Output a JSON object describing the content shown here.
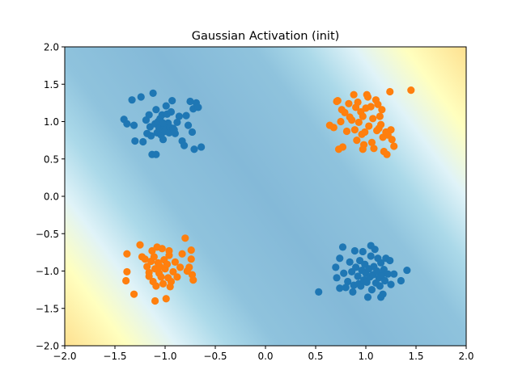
{
  "chart_data": {
    "type": "scatter",
    "title": "Gaussian Activation (init)",
    "xlabel": "",
    "ylabel": "",
    "xlim": [
      -2.0,
      2.0
    ],
    "ylim": [
      -2.0,
      2.0
    ],
    "xticks": [
      "−2.0",
      "−1.5",
      "−1.0",
      "−0.5",
      "0.0",
      "0.5",
      "1.0",
      "1.5",
      "2.0"
    ],
    "yticks": [
      "−2.0",
      "−1.5",
      "−1.0",
      "−0.5",
      "0.0",
      "0.5",
      "1.0",
      "1.5",
      "2.0"
    ],
    "xtick_values": [
      -2.0,
      -1.5,
      -1.0,
      -0.5,
      0.0,
      0.5,
      1.0,
      1.5,
      2.0
    ],
    "ytick_values": [
      -2.0,
      -1.5,
      -1.0,
      -0.5,
      0.0,
      0.5,
      1.0,
      1.5,
      2.0
    ],
    "grid": false,
    "background": {
      "type": "filled-contour",
      "colormap": "RdYlBu",
      "description": "diagonal bands: blue along the line y = -x, fading to white then yellow toward the top-right and bottom-left corners"
    },
    "series": [
      {
        "color": "#1f77b4",
        "points": [
          [
            -1.41,
            1.03
          ],
          [
            -1.38,
            0.97
          ],
          [
            -1.33,
            1.29
          ],
          [
            -1.31,
            0.95
          ],
          [
            -1.3,
            0.74
          ],
          [
            -1.24,
            1.33
          ],
          [
            -1.22,
            0.73
          ],
          [
            -1.19,
            1.02
          ],
          [
            -1.16,
            1.09
          ],
          [
            -1.15,
            0.93
          ],
          [
            -1.14,
            0.81
          ],
          [
            -1.13,
            0.56
          ],
          [
            -1.12,
            1.38
          ],
          [
            -1.1,
            0.97
          ],
          [
            -1.09,
            1.16
          ],
          [
            -1.08,
            0.85
          ],
          [
            -1.07,
            1.0
          ],
          [
            -1.06,
            0.91
          ],
          [
            -1.05,
            1.04
          ],
          [
            -1.04,
            0.82
          ],
          [
            -1.03,
            1.09
          ],
          [
            -1.02,
            0.76
          ],
          [
            -1.01,
            0.93
          ],
          [
            -1.0,
            0.87
          ],
          [
            -0.99,
            1.21
          ],
          [
            -0.98,
            1.1
          ],
          [
            -0.97,
            0.98
          ],
          [
            -0.96,
            0.85
          ],
          [
            -0.95,
            0.92
          ],
          [
            -0.94,
            1.13
          ],
          [
            -0.93,
            1.28
          ],
          [
            -0.92,
            0.91
          ],
          [
            -0.91,
            0.89
          ],
          [
            -0.9,
            0.84
          ],
          [
            -0.88,
            0.99
          ],
          [
            -0.86,
            1.07
          ],
          [
            -0.83,
            0.74
          ],
          [
            -0.81,
            0.68
          ],
          [
            -0.79,
            1.08
          ],
          [
            -0.77,
            0.95
          ],
          [
            -0.75,
            1.27
          ],
          [
            -0.73,
            0.86
          ],
          [
            -0.72,
            1.17
          ],
          [
            -0.71,
            0.63
          ],
          [
            -0.69,
            1.25
          ],
          [
            -0.67,
            1.19
          ],
          [
            -0.64,
            0.66
          ],
          [
            -1.09,
            0.56
          ],
          [
            -1.18,
            0.84
          ],
          [
            -1.02,
            0.98
          ],
          [
            0.53,
            -1.28
          ],
          [
            0.7,
            -0.95
          ],
          [
            0.71,
            -1.09
          ],
          [
            0.74,
            -0.83
          ],
          [
            0.74,
            -1.23
          ],
          [
            0.77,
            -0.68
          ],
          [
            0.78,
            -1.03
          ],
          [
            0.8,
            -1.22
          ],
          [
            0.82,
            -1.14
          ],
          [
            0.84,
            -0.88
          ],
          [
            0.86,
            -1.01
          ],
          [
            0.87,
            -1.28
          ],
          [
            0.88,
            -1.19
          ],
          [
            0.89,
            -0.73
          ],
          [
            0.9,
            -0.95
          ],
          [
            0.92,
            -1.07
          ],
          [
            0.93,
            -1.17
          ],
          [
            0.94,
            -0.86
          ],
          [
            0.95,
            -1.2
          ],
          [
            0.96,
            -0.99
          ],
          [
            0.97,
            -0.74
          ],
          [
            0.98,
            -1.12
          ],
          [
            0.99,
            -0.91
          ],
          [
            1.0,
            -1.03
          ],
          [
            1.01,
            -1.15
          ],
          [
            1.02,
            -1.35
          ],
          [
            1.03,
            -0.97
          ],
          [
            1.04,
            -1.08
          ],
          [
            1.05,
            -0.8
          ],
          [
            1.05,
            -0.66
          ],
          [
            1.06,
            -1.25
          ],
          [
            1.07,
            -1.05
          ],
          [
            1.08,
            -0.94
          ],
          [
            1.09,
            -0.71
          ],
          [
            1.1,
            -1.16
          ],
          [
            1.11,
            -1.0
          ],
          [
            1.12,
            -0.83
          ],
          [
            1.13,
            -1.09
          ],
          [
            1.14,
            -1.2
          ],
          [
            1.15,
            -0.89
          ],
          [
            1.16,
            -1.05
          ],
          [
            1.17,
            -1.31
          ],
          [
            1.18,
            -0.98
          ],
          [
            1.19,
            -1.13
          ],
          [
            1.2,
            -0.83
          ],
          [
            1.22,
            -1.04
          ],
          [
            1.24,
            -0.86
          ],
          [
            1.25,
            -1.18
          ],
          [
            1.28,
            -1.04
          ],
          [
            1.35,
            -1.13
          ],
          [
            1.41,
            -0.99
          ],
          [
            1.15,
            -1.35
          ]
        ]
      },
      {
        "color": "#ff7f0e",
        "points": [
          [
            0.64,
            0.95
          ],
          [
            0.68,
            0.92
          ],
          [
            0.71,
            1.27
          ],
          [
            0.72,
            1.28
          ],
          [
            0.73,
            0.63
          ],
          [
            0.75,
            1.0
          ],
          [
            0.76,
            1.16
          ],
          [
            0.77,
            0.66
          ],
          [
            0.79,
            1.12
          ],
          [
            0.81,
            0.87
          ],
          [
            0.83,
            1.24
          ],
          [
            0.84,
            1.06
          ],
          [
            0.86,
            1.02
          ],
          [
            0.88,
            1.36
          ],
          [
            0.89,
            0.89
          ],
          [
            0.9,
            1.19
          ],
          [
            0.91,
            0.75
          ],
          [
            0.92,
            1.26
          ],
          [
            0.93,
            0.99
          ],
          [
            0.95,
            1.13
          ],
          [
            0.96,
            0.83
          ],
          [
            0.97,
            1.07
          ],
          [
            0.98,
            0.69
          ],
          [
            0.99,
            0.86
          ],
          [
            1.0,
            1.18
          ],
          [
            1.01,
            1.36
          ],
          [
            1.02,
            1.33
          ],
          [
            1.03,
            0.94
          ],
          [
            1.05,
            1.2
          ],
          [
            1.06,
            0.72
          ],
          [
            1.07,
            1.04
          ],
          [
            1.08,
            0.64
          ],
          [
            1.1,
            1.29
          ],
          [
            1.11,
            0.88
          ],
          [
            1.12,
            1.23
          ],
          [
            1.13,
            0.91
          ],
          [
            1.14,
            1.07
          ],
          [
            1.15,
            0.96
          ],
          [
            1.16,
            1.16
          ],
          [
            1.17,
            0.79
          ],
          [
            1.18,
            0.6
          ],
          [
            1.2,
            0.86
          ],
          [
            1.21,
            0.56
          ],
          [
            1.22,
            0.82
          ],
          [
            1.24,
            1.4
          ],
          [
            1.25,
            0.89
          ],
          [
            1.26,
            0.76
          ],
          [
            1.28,
            0.67
          ],
          [
            1.45,
            1.42
          ],
          [
            0.97,
            0.63
          ],
          [
            -1.38,
            -0.77
          ],
          [
            -1.38,
            -1.01
          ],
          [
            -1.39,
            -1.13
          ],
          [
            -1.31,
            -1.31
          ],
          [
            -1.25,
            -0.65
          ],
          [
            -1.23,
            -0.81
          ],
          [
            -1.2,
            -0.84
          ],
          [
            -1.18,
            -0.94
          ],
          [
            -1.16,
            -1.02
          ],
          [
            -1.14,
            -0.87
          ],
          [
            -1.13,
            -0.73
          ],
          [
            -1.12,
            -1.14
          ],
          [
            -1.11,
            -0.81
          ],
          [
            -1.1,
            -0.97
          ],
          [
            -1.1,
            -1.4
          ],
          [
            -1.09,
            -1.2
          ],
          [
            -1.08,
            -0.68
          ],
          [
            -1.07,
            -0.89
          ],
          [
            -1.06,
            -1.03
          ],
          [
            -1.05,
            -0.94
          ],
          [
            -1.04,
            -1.08
          ],
          [
            -1.03,
            -0.7
          ],
          [
            -1.02,
            -1.17
          ],
          [
            -1.01,
            -0.85
          ],
          [
            -1.0,
            -0.97
          ],
          [
            -0.99,
            -1.37
          ],
          [
            -0.98,
            -0.91
          ],
          [
            -0.97,
            -1.09
          ],
          [
            -0.96,
            -0.79
          ],
          [
            -0.95,
            -1.21
          ],
          [
            -0.94,
            -1.14
          ],
          [
            -0.92,
            -1.01
          ],
          [
            -0.9,
            -0.88
          ],
          [
            -0.88,
            -1.08
          ],
          [
            -0.85,
            -0.95
          ],
          [
            -0.83,
            -0.77
          ],
          [
            -0.8,
            -0.56
          ],
          [
            -0.78,
            -1.0
          ],
          [
            -0.76,
            -0.95
          ],
          [
            -0.74,
            -0.84
          ],
          [
            -0.73,
            -1.05
          ],
          [
            -0.72,
            -1.12
          ],
          [
            -0.74,
            -0.72
          ],
          [
            -1.16,
            -1.07
          ],
          [
            -0.96,
            -0.73
          ]
        ]
      }
    ]
  }
}
